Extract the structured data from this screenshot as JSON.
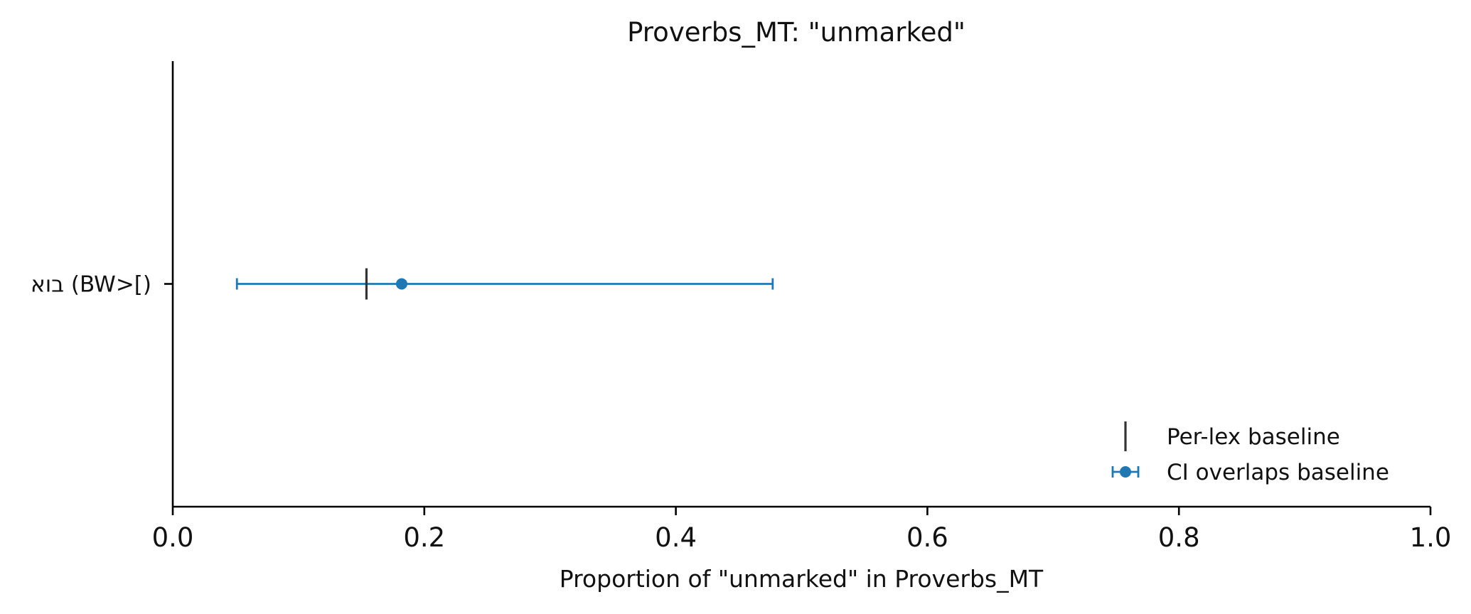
{
  "chart_data": {
    "type": "errorbar",
    "title": "Proverbs_MT: \"unmarked\"",
    "xlabel": "Proportion of \"unmarked\" in Proverbs_MT",
    "ylabel": "",
    "xlim": [
      0.0,
      1.0
    ],
    "xticks": [
      "0.0",
      "0.2",
      "0.4",
      "0.6",
      "0.8",
      "1.0"
    ],
    "grid": false,
    "legend_position": "lower-right",
    "categories": [
      "בוא (BW>[)"
    ],
    "points": [
      {
        "label": "בוא (BW>[)",
        "value": 0.182,
        "ci_low": 0.051,
        "ci_high": 0.477,
        "baseline": 0.154
      }
    ],
    "legend": [
      {
        "label": "Per-lex baseline",
        "marker": "vertical-tick",
        "color": "#333333"
      },
      {
        "label": "CI overlaps baseline",
        "marker": "errorbar-dot",
        "color": "#1f77b4"
      }
    ],
    "colors": {
      "point": "#1f77b4",
      "baseline": "#333333",
      "axis": "#000000"
    }
  }
}
